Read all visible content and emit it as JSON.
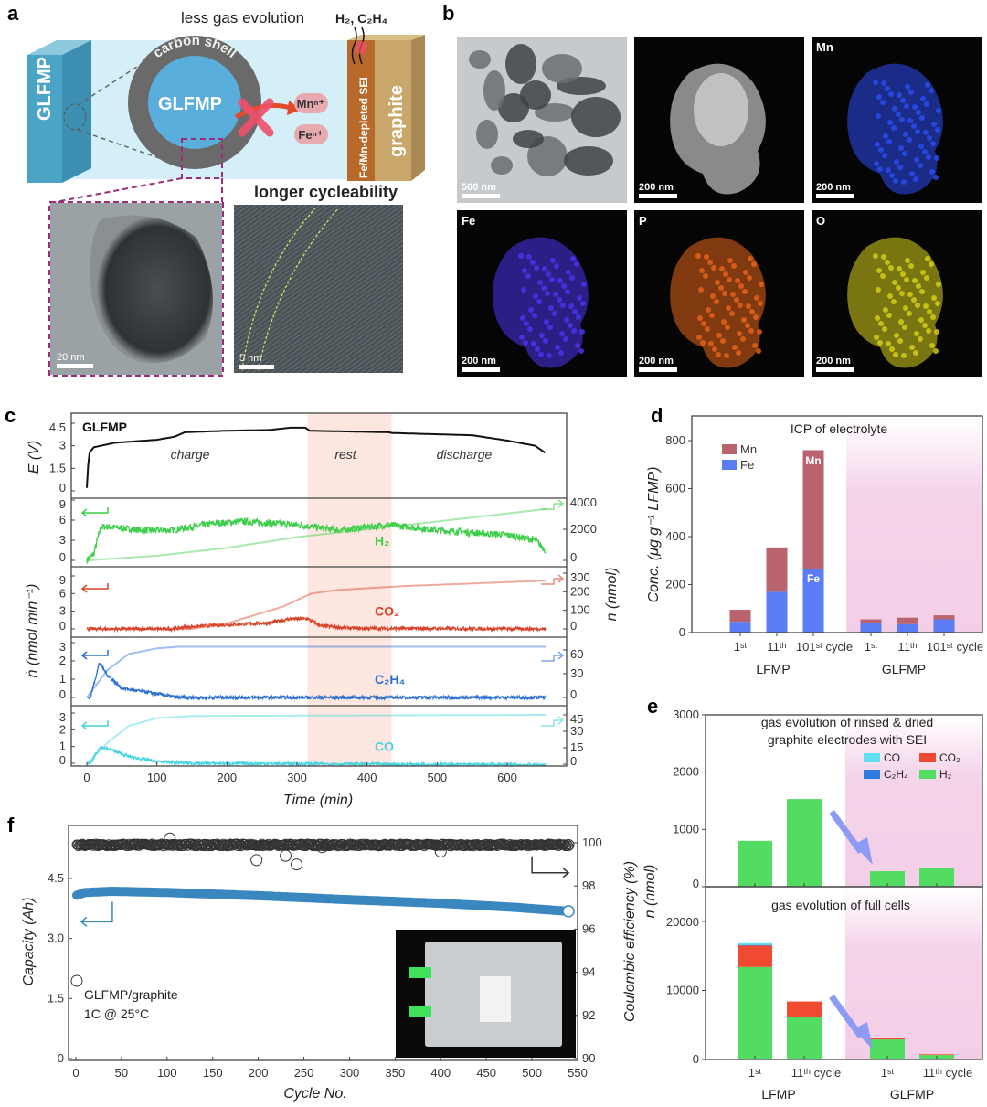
{
  "panel_labels": {
    "a": "a",
    "b": "b",
    "c": "c",
    "d": "d",
    "e": "e",
    "f": "f"
  },
  "panel_a": {
    "gas_text": "less gas evolution",
    "gas_species": "H₂, C₂H₄",
    "left_electrode": "GLFMP",
    "shell_label": "carbon shell",
    "core_label": "GLFMP",
    "ion_mn": "Mnⁿ⁺",
    "ion_fe": "Feⁿ⁺",
    "sei_label": "Fe/Mn-depleted SEI",
    "anode_label": "graphite",
    "cycle_text": "longer cycleability",
    "scale_left": "20 nm",
    "scale_right": "5 nm"
  },
  "panel_b": {
    "tiles": [
      {
        "label": "",
        "scale": "500 nm",
        "kind": "tem",
        "color": "#888888"
      },
      {
        "label": "",
        "scale": "200 nm",
        "kind": "haadf",
        "color": "#d8d8d8"
      },
      {
        "label": "Mn",
        "scale": "200 nm",
        "kind": "map",
        "color": "#2b4df2"
      },
      {
        "label": "Fe",
        "scale": "200 nm",
        "kind": "map",
        "color": "#4b35f0"
      },
      {
        "label": "P",
        "scale": "200 nm",
        "kind": "map",
        "color": "#e8641a"
      },
      {
        "label": "O",
        "scale": "200 nm",
        "kind": "map",
        "color": "#d9d21a"
      }
    ]
  },
  "chart_data": [
    {
      "id": "c",
      "type": "line",
      "sample": "GLFMP",
      "xlabel": "Time (min)",
      "xticks": [
        0,
        100,
        200,
        300,
        400,
        500,
        600
      ],
      "xlim": [
        -10,
        680
      ],
      "phases": [
        {
          "label": "charge",
          "range": [
            0,
            315
          ]
        },
        {
          "label": "rest",
          "range": [
            315,
            435
          ],
          "shaded": true
        },
        {
          "label": "discharge",
          "range": [
            435,
            655
          ]
        }
      ],
      "left_ylabel_top": "E (V)",
      "left_ylabel": "ṅ (nmol min⁻¹)",
      "right_ylabel": "n (nmol)",
      "panels": [
        {
          "name": "E",
          "color": "#111111",
          "yticks": [
            0,
            1.5,
            3,
            4.5
          ],
          "rate": [
            [
              0,
              0.2
            ],
            [
              3,
              2.5
            ],
            [
              10,
              2.9
            ],
            [
              40,
              3.2
            ],
            [
              100,
              3.4
            ],
            [
              125,
              3.6
            ],
            [
              140,
              3.9
            ],
            [
              200,
              4.0
            ],
            [
              260,
              4.05
            ],
            [
              290,
              4.2
            ],
            [
              312,
              4.2
            ],
            [
              318,
              4.0
            ],
            [
              430,
              3.9
            ],
            [
              436,
              3.85
            ],
            [
              550,
              3.7
            ],
            [
              600,
              3.35
            ],
            [
              640,
              3.0
            ],
            [
              655,
              2.5
            ]
          ]
        },
        {
          "name": "H₂",
          "color": "#3ecf4a",
          "yticks": [
            0,
            3,
            6,
            9
          ],
          "right_ticks": [
            0,
            2000,
            4000
          ],
          "rate": [
            [
              0,
              0
            ],
            [
              10,
              1
            ],
            [
              20,
              5
            ],
            [
              30,
              5
            ],
            [
              80,
              4.5
            ],
            [
              120,
              4.5
            ],
            [
              180,
              5.5
            ],
            [
              220,
              5.8
            ],
            [
              300,
              5.3
            ],
            [
              360,
              4.5
            ],
            [
              430,
              5.3
            ],
            [
              500,
              4.5
            ],
            [
              600,
              3.8
            ],
            [
              640,
              3
            ],
            [
              655,
              1.5
            ]
          ],
          "cumulative": [
            [
              0,
              0
            ],
            [
              100,
              300
            ],
            [
              200,
              800
            ],
            [
              300,
              1500
            ],
            [
              400,
              2000
            ],
            [
              500,
              2500
            ],
            [
              655,
              3300
            ]
          ]
        },
        {
          "name": "CO₂",
          "color": "#d9432a",
          "yticks": [
            0,
            3,
            6,
            9
          ],
          "right_ticks": [
            0,
            100,
            200,
            300
          ],
          "rate": [
            [
              0,
              0
            ],
            [
              120,
              0
            ],
            [
              140,
              0.3
            ],
            [
              180,
              0.6
            ],
            [
              260,
              1.0
            ],
            [
              290,
              1.7
            ],
            [
              315,
              1.7
            ],
            [
              335,
              0.5
            ],
            [
              380,
              0.1
            ],
            [
              655,
              0
            ]
          ],
          "cumulative": [
            [
              0,
              0
            ],
            [
              150,
              0
            ],
            [
              200,
              30
            ],
            [
              280,
              120
            ],
            [
              320,
              190
            ],
            [
              360,
              210
            ],
            [
              450,
              230
            ],
            [
              655,
              260
            ]
          ]
        },
        {
          "name": "C₂H₄",
          "color": "#2a6fd6",
          "yticks": [
            0,
            1,
            2,
            3
          ],
          "right_ticks": [
            0,
            30,
            60
          ],
          "rate": [
            [
              0,
              0
            ],
            [
              5,
              0
            ],
            [
              18,
              1.9
            ],
            [
              30,
              1.2
            ],
            [
              50,
              0.5
            ],
            [
              100,
              0.2
            ],
            [
              130,
              0
            ],
            [
              655,
              0
            ]
          ],
          "cumulative": [
            [
              0,
              0
            ],
            [
              30,
              35
            ],
            [
              60,
              55
            ],
            [
              100,
              62
            ],
            [
              130,
              64
            ],
            [
              655,
              64
            ]
          ]
        },
        {
          "name": "CO",
          "color": "#45d4e0",
          "yticks": [
            0,
            1,
            2,
            3
          ],
          "right_ticks": [
            0,
            15,
            30,
            45
          ],
          "rate": [
            [
              0,
              0
            ],
            [
              5,
              0
            ],
            [
              20,
              1
            ],
            [
              35,
              0.8
            ],
            [
              60,
              0.4
            ],
            [
              100,
              0.1
            ],
            [
              150,
              0
            ],
            [
              655,
              -0.1
            ]
          ],
          "cumulative": [
            [
              0,
              0
            ],
            [
              30,
              20
            ],
            [
              60,
              35
            ],
            [
              100,
              42
            ],
            [
              150,
              44
            ],
            [
              655,
              45
            ]
          ]
        }
      ]
    },
    {
      "id": "d",
      "type": "bar",
      "title": "ICP of electrolyte",
      "ylabel": "Conc. (μg g⁻¹ LFMP)",
      "ylim": [
        0,
        800
      ],
      "yticks": [
        0,
        200,
        400,
        600,
        800
      ],
      "groups": [
        "LFMP",
        "GLFMP"
      ],
      "categories": [
        "1ˢᵗ",
        "11ᵗʰ",
        "101ˢᵗ cycle",
        "1ˢᵗ",
        "11ᵗʰ",
        "101ˢᵗ cycle"
      ],
      "series": [
        {
          "name": "Fe",
          "color": "#5a7cf5",
          "values": [
            45,
            170,
            265,
            40,
            35,
            55
          ]
        },
        {
          "name": "Mn",
          "color": "#b8636e",
          "values": [
            50,
            185,
            495,
            15,
            27,
            17
          ]
        }
      ],
      "bar_labels": {
        "mn": "Mn",
        "fe": "Fe"
      }
    },
    {
      "id": "e",
      "type": "bar",
      "ylabel": "n (nmol)",
      "legend": [
        {
          "name": "CO",
          "color": "#5ee0f0"
        },
        {
          "name": "CO₂",
          "color": "#f04a30"
        },
        {
          "name": "C₂H₄",
          "color": "#2e7be0"
        },
        {
          "name": "H₂",
          "color": "#52dc62"
        }
      ],
      "groups": [
        "LFMP",
        "GLFMP"
      ],
      "categories": [
        "1ˢᵗ",
        "11ᵗʰ cycle",
        "1ˢᵗ",
        "11ᵗʰ cycle"
      ],
      "subplots": [
        {
          "title": [
            "gas evolution of rinsed & dried",
            "graphite electrodes with SEI"
          ],
          "ylim": [
            0,
            3000
          ],
          "yticks": [
            0,
            1000,
            2000,
            3000
          ],
          "series": [
            {
              "name": "H₂",
              "values": [
                800,
                1530,
                270,
                330
              ]
            },
            {
              "name": "CO₂",
              "values": [
                0,
                0,
                0,
                0
              ]
            },
            {
              "name": "C₂H₄",
              "values": [
                0,
                0,
                0,
                0
              ]
            },
            {
              "name": "CO",
              "values": [
                0,
                0,
                0,
                0
              ]
            }
          ]
        },
        {
          "title": [
            "gas evolution of full cells"
          ],
          "ylim": [
            0,
            23000
          ],
          "yticks": [
            0,
            10000,
            20000
          ],
          "series": [
            {
              "name": "H₂",
              "values": [
                13400,
                6100,
                2900,
                650
              ]
            },
            {
              "name": "CO₂",
              "values": [
                3100,
                2300,
                250,
                100
              ]
            },
            {
              "name": "C₂H₄",
              "values": [
                100,
                0,
                0,
                0
              ]
            },
            {
              "name": "CO",
              "values": [
                250,
                0,
                0,
                0
              ]
            }
          ]
        }
      ]
    },
    {
      "id": "f",
      "type": "scatter",
      "xlabel": "Cycle No.",
      "ylabel_left": "Capacity (Ah)",
      "ylabel_right": "Coulombic efficiency (%)",
      "xlim": [
        0,
        550
      ],
      "xticks": [
        0,
        50,
        100,
        150,
        200,
        250,
        300,
        350,
        400,
        450,
        500,
        550
      ],
      "ylim_left": [
        0,
        5.4
      ],
      "yticks_left": [
        0,
        1.5,
        3.0,
        4.5
      ],
      "ylim_right": [
        90,
        101.3
      ],
      "yticks_right": [
        90,
        92,
        94,
        96,
        98,
        100
      ],
      "annotation": [
        "GLFMP/graphite",
        "1C @ 25°C"
      ],
      "capacity": {
        "color": "#3a87c0",
        "points": [
          [
            1,
            4.08
          ],
          [
            10,
            4.15
          ],
          [
            40,
            4.18
          ],
          [
            100,
            4.15
          ],
          [
            200,
            4.07
          ],
          [
            300,
            3.97
          ],
          [
            400,
            3.88
          ],
          [
            480,
            3.78
          ],
          [
            540,
            3.68
          ]
        ]
      },
      "ce": {
        "color": "#333333",
        "baseline": 99.9,
        "outliers": [
          [
            1,
            93.6
          ],
          [
            103,
            100.2
          ],
          [
            198,
            99.2
          ],
          [
            230,
            99.4
          ],
          [
            242,
            99.0
          ],
          [
            270,
            99.8
          ],
          [
            400,
            99.6
          ],
          [
            540,
            99.9
          ]
        ]
      }
    }
  ]
}
